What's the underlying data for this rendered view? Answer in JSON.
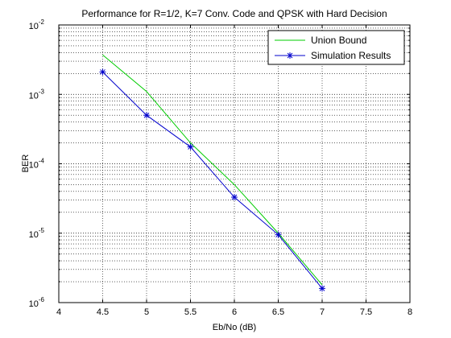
{
  "chart_data": {
    "type": "line",
    "title": "Performance for R=1/2, K=7 Conv. Code and QPSK with Hard Decision",
    "xlabel": "Eb/No (dB)",
    "ylabel": "BER",
    "xlim": [
      4,
      8
    ],
    "ylim": [
      1e-06,
      0.01
    ],
    "y_scale": "log",
    "grid": "major and minor, dotted",
    "legend_position": "top-right",
    "x_ticks": [
      "4",
      "4.5",
      "5",
      "5.5",
      "6",
      "6.5",
      "7",
      "7.5",
      "8"
    ],
    "y_ticks": [
      {
        "base": "10",
        "exp": "-6"
      },
      {
        "base": "10",
        "exp": "-5"
      },
      {
        "base": "10",
        "exp": "-4"
      },
      {
        "base": "10",
        "exp": "-3"
      },
      {
        "base": "10",
        "exp": "-2"
      }
    ],
    "series": [
      {
        "name": "Union Bound",
        "color": "#00cc00",
        "marker": "none",
        "x": [
          4.5,
          5,
          5.5,
          6,
          6.5,
          7
        ],
        "values": [
          0.0037,
          0.0011,
          0.0002,
          5e-05,
          1e-05,
          1.8e-06
        ]
      },
      {
        "name": "Simulation Results",
        "color": "#0000cc",
        "marker": "asterisk",
        "x": [
          4.5,
          5,
          5.5,
          6,
          6.5,
          7
        ],
        "values": [
          0.0021,
          0.0005,
          0.000175,
          3.3e-05,
          9.5e-06,
          1.6e-06
        ]
      }
    ]
  }
}
